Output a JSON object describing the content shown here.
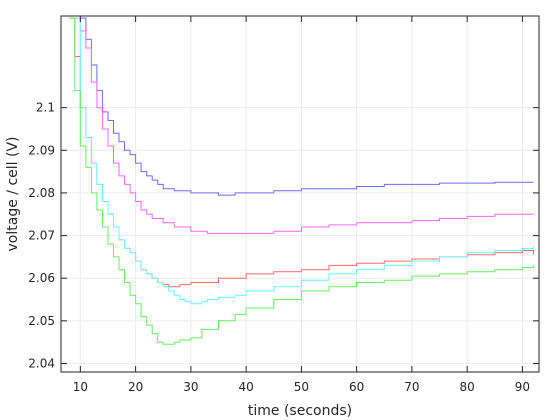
{
  "chart_data": {
    "type": "line",
    "xlabel": "time (seconds)",
    "ylabel": "voltage / cell (V)",
    "xlim": [
      6.5,
      93
    ],
    "ylim": [
      2.038,
      2.1215
    ],
    "xticks": [
      10,
      20,
      30,
      40,
      50,
      60,
      70,
      80,
      90
    ],
    "yticks": [
      2.04,
      2.05,
      2.06,
      2.07,
      2.08,
      2.09,
      2.1
    ],
    "xtick_labels": [
      "10",
      "20",
      "30",
      "40",
      "50",
      "60",
      "70",
      "80",
      "90"
    ],
    "ytick_labels": [
      "2.04",
      "2.05",
      "2.06",
      "2.07",
      "2.08",
      "2.09",
      "2.1"
    ],
    "grid": true,
    "series": [
      {
        "color": "#6b6bff",
        "x": [
          10,
          11,
          12,
          13,
          14,
          15,
          16,
          17,
          18,
          19,
          20,
          21,
          22,
          23,
          24,
          25,
          26,
          27,
          28,
          30,
          32,
          35,
          38,
          40,
          45,
          50,
          55,
          60,
          65,
          70,
          75,
          80,
          85,
          90,
          92
        ],
        "y": [
          2.121,
          2.116,
          2.11,
          2.104,
          2.099,
          2.097,
          2.094,
          2.092,
          2.09,
          2.089,
          2.087,
          2.085,
          2.084,
          2.083,
          2.082,
          2.081,
          2.081,
          2.0805,
          2.0805,
          2.08,
          2.08,
          2.0795,
          2.08,
          2.08,
          2.0805,
          2.081,
          2.081,
          2.0815,
          2.082,
          2.082,
          2.0823,
          2.0823,
          2.0825,
          2.0825,
          2.0825
        ]
      },
      {
        "color": "#ff66ff",
        "x": [
          9,
          10,
          11,
          12,
          13,
          14,
          15,
          16,
          17,
          18,
          19,
          20,
          21,
          22,
          23,
          25,
          27,
          30,
          33,
          36,
          40,
          45,
          50,
          55,
          60,
          65,
          70,
          75,
          80,
          85,
          90,
          92
        ],
        "y": [
          2.121,
          2.118,
          2.114,
          2.106,
          2.1,
          2.095,
          2.091,
          2.087,
          2.084,
          2.082,
          2.08,
          2.078,
          2.076,
          2.075,
          2.074,
          2.073,
          2.072,
          2.071,
          2.0705,
          2.0705,
          2.0705,
          2.071,
          2.072,
          2.0725,
          2.073,
          2.073,
          2.0735,
          2.074,
          2.0745,
          2.075,
          2.075,
          2.075
        ]
      },
      {
        "color": "#ff6b6b",
        "x": [
          8,
          9,
          10,
          11,
          12,
          13,
          14,
          15,
          16,
          17,
          18,
          19,
          20,
          21,
          22,
          23,
          24,
          25,
          26,
          28,
          30,
          33,
          35,
          38,
          40,
          45,
          50,
          55,
          60,
          65,
          70,
          75,
          80,
          85,
          90,
          92
        ],
        "y": [
          2.121,
          2.112,
          2.1,
          2.093,
          2.087,
          2.082,
          2.078,
          2.075,
          2.072,
          2.069,
          2.067,
          2.066,
          2.064,
          2.062,
          2.061,
          2.06,
          2.059,
          2.0585,
          2.058,
          2.0585,
          2.059,
          2.059,
          2.06,
          2.06,
          2.061,
          2.0615,
          2.062,
          2.063,
          2.0635,
          2.064,
          2.0645,
          2.065,
          2.0655,
          2.066,
          2.0665,
          2.0655
        ]
      },
      {
        "color": "#66ffff",
        "x": [
          9,
          10,
          11,
          12,
          13,
          14,
          15,
          16,
          17,
          18,
          19,
          20,
          21,
          22,
          23,
          24,
          25,
          26,
          27,
          28,
          29,
          30,
          31,
          32,
          33,
          35,
          38,
          40,
          45,
          50,
          55,
          60,
          65,
          70,
          75,
          80,
          85,
          90,
          92
        ],
        "y": [
          2.121,
          2.1,
          2.093,
          2.087,
          2.082,
          2.078,
          2.075,
          2.072,
          2.069,
          2.067,
          2.066,
          2.064,
          2.062,
          2.061,
          2.06,
          2.059,
          2.058,
          2.057,
          2.056,
          2.055,
          2.0545,
          2.054,
          2.054,
          2.0545,
          2.055,
          2.0555,
          2.056,
          2.057,
          2.058,
          2.0595,
          2.061,
          2.062,
          2.063,
          2.064,
          2.065,
          2.066,
          2.0665,
          2.067,
          2.0675
        ]
      },
      {
        "color": "#66ee66",
        "x": [
          8,
          9,
          10,
          11,
          12,
          13,
          14,
          15,
          16,
          17,
          18,
          19,
          20,
          21,
          22,
          23,
          24,
          25,
          26,
          27,
          28,
          30,
          32,
          35,
          38,
          40,
          45,
          50,
          55,
          60,
          65,
          70,
          75,
          80,
          85,
          90,
          92
        ],
        "y": [
          2.121,
          2.104,
          2.091,
          2.086,
          2.08,
          2.076,
          2.072,
          2.068,
          2.065,
          2.062,
          2.059,
          2.056,
          2.054,
          2.051,
          2.049,
          2.047,
          2.045,
          2.0445,
          2.0445,
          2.045,
          2.0455,
          2.046,
          2.048,
          2.05,
          2.0515,
          2.053,
          2.055,
          2.057,
          2.058,
          2.059,
          2.0595,
          2.0605,
          2.061,
          2.0615,
          2.062,
          2.0625,
          2.063
        ]
      }
    ]
  }
}
